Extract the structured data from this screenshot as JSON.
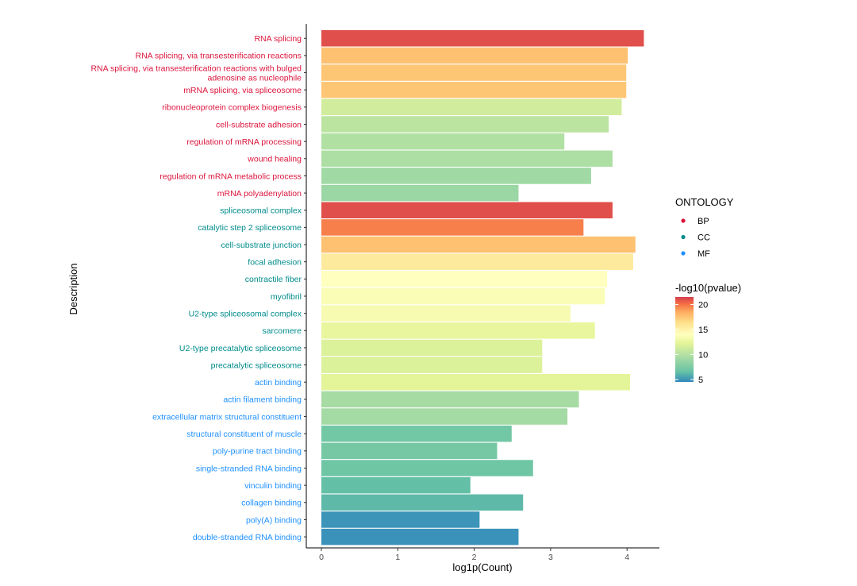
{
  "chart_data": {
    "type": "bar",
    "orientation": "horizontal",
    "xlabel": "log1p(Count)",
    "ylabel": "Description",
    "xlim": [
      -0.15,
      4.42
    ],
    "xticks": [
      0,
      1,
      2,
      3,
      4
    ],
    "xtick_labels": [
      "0",
      "1",
      "2",
      "3",
      "4"
    ],
    "ontology_colors": {
      "BP": "#dc143c",
      "CC": "#008b8b",
      "MF": "#1e90ff"
    },
    "bars": [
      {
        "label": "RNA splicing",
        "ontology": "BP",
        "value": 4.22,
        "pvalue": 21.0
      },
      {
        "label": "RNA splicing, via transesterification reactions",
        "ontology": "BP",
        "value": 4.01,
        "pvalue": 17.5
      },
      {
        "label": "RNA splicing, via transesterification reactions with bulged adenosine as nucleophile",
        "label_lines": [
          "RNA splicing, via transesterification reactions with bulged",
          "adenosine as nucleophile"
        ],
        "ontology": "BP",
        "value": 3.99,
        "pvalue": 17.3
      },
      {
        "label": "mRNA splicing, via spliceosome",
        "ontology": "BP",
        "value": 3.99,
        "pvalue": 17.3
      },
      {
        "label": "ribonucleoprotein complex biogenesis",
        "ontology": "BP",
        "value": 3.93,
        "pvalue": 11.3
      },
      {
        "label": "cell-substrate adhesion",
        "ontology": "BP",
        "value": 3.76,
        "pvalue": 10.3
      },
      {
        "label": "regulation of mRNA processing",
        "ontology": "BP",
        "value": 3.18,
        "pvalue": 9.8
      },
      {
        "label": "wound healing",
        "ontology": "BP",
        "value": 3.81,
        "pvalue": 9.6
      },
      {
        "label": "regulation of mRNA metabolic process",
        "ontology": "BP",
        "value": 3.53,
        "pvalue": 9.0
      },
      {
        "label": "mRNA polyadenylation",
        "ontology": "BP",
        "value": 2.58,
        "pvalue": 8.8
      },
      {
        "label": "spliceosomal complex",
        "ontology": "CC",
        "value": 3.81,
        "pvalue": 21.0
      },
      {
        "label": "catalytic step 2 spliceosome",
        "ontology": "CC",
        "value": 3.43,
        "pvalue": 19.6
      },
      {
        "label": "cell-substrate junction",
        "ontology": "CC",
        "value": 4.11,
        "pvalue": 17.5
      },
      {
        "label": "focal adhesion",
        "ontology": "CC",
        "value": 4.08,
        "pvalue": 15.5
      },
      {
        "label": "contractile fiber",
        "ontology": "CC",
        "value": 3.74,
        "pvalue": 14.0
      },
      {
        "label": "myofibril",
        "ontology": "CC",
        "value": 3.71,
        "pvalue": 13.6
      },
      {
        "label": "U2-type spliceosomal complex",
        "ontology": "CC",
        "value": 3.26,
        "pvalue": 13.4
      },
      {
        "label": "sarcomere",
        "ontology": "CC",
        "value": 3.58,
        "pvalue": 12.5
      },
      {
        "label": "U2-type precatalytic spliceosome",
        "ontology": "CC",
        "value": 2.89,
        "pvalue": 11.8
      },
      {
        "label": "precatalytic spliceosome",
        "ontology": "CC",
        "value": 2.89,
        "pvalue": 11.8
      },
      {
        "label": "actin binding",
        "ontology": "MF",
        "value": 4.04,
        "pvalue": 12.2
      },
      {
        "label": "actin filament binding",
        "ontology": "MF",
        "value": 3.37,
        "pvalue": 9.3
      },
      {
        "label": "extracellular matrix structural constituent",
        "ontology": "MF",
        "value": 3.22,
        "pvalue": 9.2
      },
      {
        "label": "structural constituent of muscle",
        "ontology": "MF",
        "value": 2.49,
        "pvalue": 7.0
      },
      {
        "label": "poly-purine tract binding",
        "ontology": "MF",
        "value": 2.3,
        "pvalue": 7.2
      },
      {
        "label": "single-stranded RNA binding",
        "ontology": "MF",
        "value": 2.77,
        "pvalue": 6.9
      },
      {
        "label": "vinculin binding",
        "ontology": "MF",
        "value": 1.95,
        "pvalue": 6.4
      },
      {
        "label": "collagen binding",
        "ontology": "MF",
        "value": 2.64,
        "pvalue": 6.2
      },
      {
        "label": "poly(A) binding",
        "ontology": "MF",
        "value": 2.07,
        "pvalue": 4.9
      },
      {
        "label": "double-stranded RNA binding",
        "ontology": "MF",
        "value": 2.58,
        "pvalue": 4.8
      }
    ],
    "legend_ontology": {
      "title": "ONTOLOGY",
      "items": [
        {
          "label": "BP",
          "color": "#dc143c"
        },
        {
          "label": "CC",
          "color": "#008b8b"
        },
        {
          "label": "MF",
          "color": "#1e90ff"
        }
      ]
    },
    "legend_pvalue": {
      "title": "-log10(pvalue)",
      "range": [
        4.5,
        21.5
      ],
      "ticks": [
        5,
        10,
        15,
        20
      ],
      "tick_labels": [
        "5",
        "10",
        "15",
        "20"
      ]
    }
  }
}
